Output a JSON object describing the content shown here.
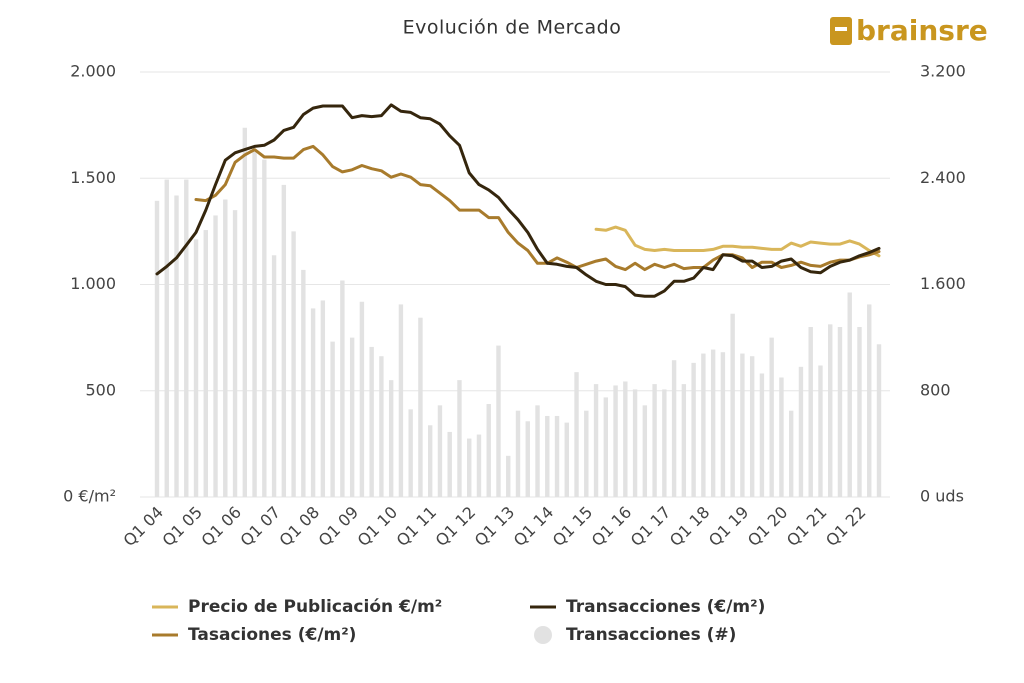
{
  "chart_data": {
    "type": "bar-line",
    "title": "Evolución de Mercado",
    "logo": "brainsre",
    "categories": [
      "Q1 04",
      null,
      null,
      null,
      "Q1 05",
      null,
      null,
      null,
      "Q1 06",
      null,
      null,
      null,
      "Q1 07",
      null,
      null,
      null,
      "Q1 08",
      null,
      null,
      null,
      "Q1 09",
      null,
      null,
      null,
      "Q1 10",
      null,
      null,
      null,
      "Q1 11",
      null,
      null,
      null,
      "Q1 12",
      null,
      null,
      null,
      "Q1 13",
      null,
      null,
      null,
      "Q1 14",
      null,
      null,
      null,
      "Q1 15",
      null,
      null,
      null,
      "Q1 16",
      null,
      null,
      null,
      "Q1 17",
      null,
      null,
      null,
      "Q1 18",
      null,
      null,
      null,
      "Q1 19",
      null,
      null,
      null,
      "Q1 20",
      null,
      null,
      null,
      "Q1 21",
      null,
      null,
      null,
      "Q1 22",
      null,
      null
    ],
    "ylim": [
      0,
      2000
    ],
    "yticks": [
      {
        "value": 0,
        "label": "0 €/m²"
      },
      500,
      {
        "value": 1000,
        "label": "1.000"
      },
      {
        "value": 1500,
        "label": "1.500"
      },
      {
        "value": 2000,
        "label": "2.000"
      }
    ],
    "y2lim": [
      0,
      3200
    ],
    "y2ticks": [
      {
        "value": 0,
        "label": "0 uds"
      },
      800,
      {
        "value": 1600,
        "label": "1.600"
      },
      {
        "value": 2400,
        "label": "2.400"
      },
      {
        "value": 3200,
        "label": "3.200"
      }
    ],
    "grid": true,
    "legend": "bottom",
    "series": [
      {
        "name": "Precio de Publicación €/m²",
        "type": "line",
        "color": "#d9b65a",
        "values": [
          null,
          null,
          null,
          null,
          null,
          null,
          null,
          null,
          null,
          null,
          null,
          null,
          null,
          null,
          null,
          null,
          null,
          null,
          null,
          null,
          null,
          null,
          null,
          null,
          null,
          null,
          null,
          null,
          null,
          null,
          null,
          null,
          null,
          null,
          null,
          null,
          null,
          null,
          null,
          null,
          null,
          null,
          null,
          null,
          null,
          1260,
          1255,
          1270,
          1255,
          1185,
          1165,
          1160,
          1165,
          1160,
          1160,
          1160,
          1160,
          1165,
          1180,
          1180,
          1175,
          1175,
          1170,
          1165,
          1165,
          1195,
          1180,
          1200,
          1195,
          1190,
          1190,
          1205,
          1190,
          1160,
          1135
        ]
      },
      {
        "name": "Tasaciones (€/m²)",
        "type": "line",
        "color": "#a87b2c",
        "values": [
          null,
          null,
          null,
          null,
          1400,
          1395,
          1420,
          1470,
          1575,
          1610,
          1635,
          1600,
          1600,
          1595,
          1595,
          1635,
          1650,
          1610,
          1555,
          1530,
          1540,
          1560,
          1545,
          1535,
          1505,
          1520,
          1505,
          1470,
          1465,
          1430,
          1395,
          1350,
          1350,
          1350,
          1315,
          1315,
          1245,
          1195,
          1160,
          1100,
          1100,
          1125,
          1105,
          1080,
          1095,
          1110,
          1120,
          1085,
          1070,
          1100,
          1070,
          1095,
          1080,
          1095,
          1075,
          1080,
          1080,
          1115,
          1140,
          1140,
          1125,
          1080,
          1105,
          1105,
          1080,
          1090,
          1105,
          1090,
          1085,
          1105,
          1115,
          1115,
          1130,
          1140,
          1155
        ]
      },
      {
        "name": "Transacciones (€/m²)",
        "type": "line",
        "color": "#35260d",
        "values": [
          1050,
          1085,
          1125,
          1185,
          1245,
          1350,
          1470,
          1585,
          1620,
          1635,
          1650,
          1655,
          1680,
          1725,
          1740,
          1800,
          1830,
          1840,
          1840,
          1840,
          1785,
          1795,
          1790,
          1795,
          1845,
          1815,
          1810,
          1785,
          1780,
          1755,
          1700,
          1655,
          1525,
          1470,
          1445,
          1410,
          1355,
          1305,
          1245,
          1165,
          1100,
          1095,
          1085,
          1080,
          1045,
          1015,
          1000,
          1000,
          990,
          950,
          945,
          945,
          970,
          1015,
          1015,
          1030,
          1080,
          1070,
          1140,
          1135,
          1110,
          1110,
          1080,
          1085,
          1110,
          1120,
          1080,
          1060,
          1055,
          1085,
          1105,
          1115,
          1135,
          1150,
          1170
        ]
      },
      {
        "name": "Transacciones (#)",
        "type": "bar",
        "axis": "y2",
        "color": "#e2e2e2",
        "values": [
          2230,
          2390,
          2270,
          2390,
          1940,
          2010,
          2120,
          2240,
          2160,
          2780,
          2610,
          2540,
          1820,
          2350,
          2000,
          1710,
          1420,
          1480,
          1170,
          1630,
          1200,
          1470,
          1130,
          1060,
          880,
          1450,
          660,
          1350,
          540,
          690,
          490,
          880,
          440,
          470,
          700,
          1140,
          310,
          650,
          570,
          690,
          610,
          610,
          560,
          940,
          650,
          850,
          750,
          840,
          870,
          810,
          690,
          850,
          810,
          1030,
          850,
          1010,
          1080,
          1110,
          1090,
          1380,
          1080,
          1060,
          930,
          1200,
          900,
          650,
          980,
          1280,
          990,
          1300,
          1280,
          1540,
          1280,
          1450,
          1150
        ]
      }
    ]
  }
}
